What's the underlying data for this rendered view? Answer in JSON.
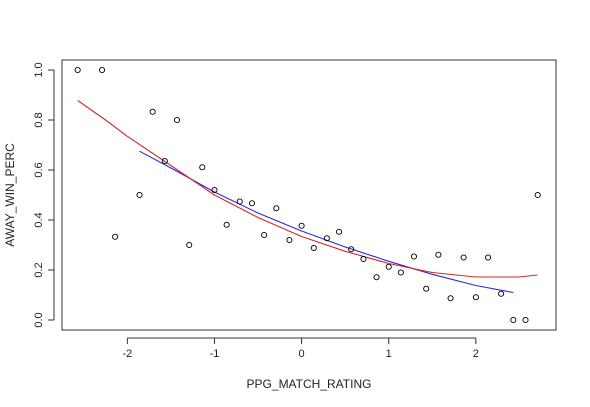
{
  "chart_data": {
    "type": "scatter",
    "title": "",
    "xlabel": "PPG_MATCH_RATING",
    "ylabel": "AWAY_WIN_PERC",
    "xlim": [
      -2.75,
      2.92
    ],
    "ylim": [
      -0.04,
      1.04
    ],
    "xticks": [
      -2,
      -1,
      0,
      1,
      2
    ],
    "yticks": [
      0.0,
      0.2,
      0.4,
      0.6,
      0.8,
      1.0
    ],
    "grid": false,
    "legend": "none",
    "points": [
      {
        "x": -2.57,
        "y": 1.0
      },
      {
        "x": -2.29,
        "y": 1.0
      },
      {
        "x": -2.14,
        "y": 0.333
      },
      {
        "x": -1.86,
        "y": 0.5
      },
      {
        "x": -1.71,
        "y": 0.833
      },
      {
        "x": -1.57,
        "y": 0.636
      },
      {
        "x": -1.43,
        "y": 0.8
      },
      {
        "x": -1.29,
        "y": 0.3
      },
      {
        "x": -1.14,
        "y": 0.611
      },
      {
        "x": -1.0,
        "y": 0.52
      },
      {
        "x": -0.86,
        "y": 0.381
      },
      {
        "x": -0.71,
        "y": 0.474
      },
      {
        "x": -0.57,
        "y": 0.467
      },
      {
        "x": -0.43,
        "y": 0.34
      },
      {
        "x": -0.29,
        "y": 0.447
      },
      {
        "x": -0.14,
        "y": 0.32
      },
      {
        "x": 0.0,
        "y": 0.377
      },
      {
        "x": 0.14,
        "y": 0.288
      },
      {
        "x": 0.29,
        "y": 0.327
      },
      {
        "x": 0.43,
        "y": 0.353
      },
      {
        "x": 0.57,
        "y": 0.283
      },
      {
        "x": 0.71,
        "y": 0.244
      },
      {
        "x": 0.86,
        "y": 0.171
      },
      {
        "x": 1.0,
        "y": 0.213
      },
      {
        "x": 1.14,
        "y": 0.19
      },
      {
        "x": 1.29,
        "y": 0.254
      },
      {
        "x": 1.43,
        "y": 0.125
      },
      {
        "x": 1.57,
        "y": 0.261
      },
      {
        "x": 1.71,
        "y": 0.087
      },
      {
        "x": 1.86,
        "y": 0.25
      },
      {
        "x": 2.0,
        "y": 0.091
      },
      {
        "x": 2.14,
        "y": 0.25
      },
      {
        "x": 2.29,
        "y": 0.105
      },
      {
        "x": 2.43,
        "y": 0.0
      },
      {
        "x": 2.57,
        "y": 0.0
      },
      {
        "x": 2.71,
        "y": 0.5
      }
    ],
    "series": [
      {
        "color": "#2b2bd6",
        "x": [
          -1.86,
          -1.5,
          -1.0,
          -0.5,
          0.0,
          0.5,
          1.0,
          1.5,
          2.0,
          2.43
        ],
        "y": [
          0.675,
          0.608,
          0.512,
          0.428,
          0.356,
          0.292,
          0.235,
          0.183,
          0.138,
          0.11
        ]
      },
      {
        "color": "#d12a2a",
        "x": [
          -2.57,
          -2.25,
          -2.0,
          -1.5,
          -1.0,
          -0.5,
          0.0,
          0.5,
          1.0,
          1.5,
          2.0,
          2.5,
          2.71
        ],
        "y": [
          0.878,
          0.8,
          0.735,
          0.618,
          0.5,
          0.41,
          0.334,
          0.275,
          0.226,
          0.19,
          0.172,
          0.172,
          0.18
        ]
      }
    ],
    "colors": {
      "axis": "#333333",
      "points": "#000000"
    }
  }
}
